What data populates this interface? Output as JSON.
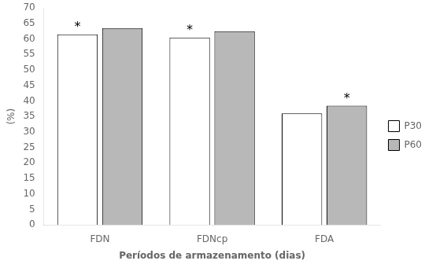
{
  "chart_data": {
    "type": "bar",
    "categories": [
      "FDN",
      "FDNcp",
      "FDA"
    ],
    "series": [
      {
        "name": "P30",
        "color": "#ffffff",
        "values": [
          61.5,
          60.5,
          36.0
        ]
      },
      {
        "name": "P60",
        "color": "#b8b8b8",
        "values": [
          63.5,
          62.5,
          38.5
        ]
      }
    ],
    "xlabel": "Períodos de armazenamento (dias)",
    "ylabel": "(%)",
    "ylim": [
      0,
      70
    ],
    "yticks": [
      0,
      5,
      10,
      15,
      20,
      25,
      30,
      35,
      40,
      45,
      50,
      55,
      60,
      65,
      70
    ],
    "grid": false,
    "legend": "right",
    "annotations": [
      {
        "text": "*",
        "category": "FDN",
        "series": "P30"
      },
      {
        "text": "*",
        "category": "FDNcp",
        "series": "P30"
      },
      {
        "text": "*",
        "category": "FDA",
        "series": "P60"
      }
    ]
  }
}
